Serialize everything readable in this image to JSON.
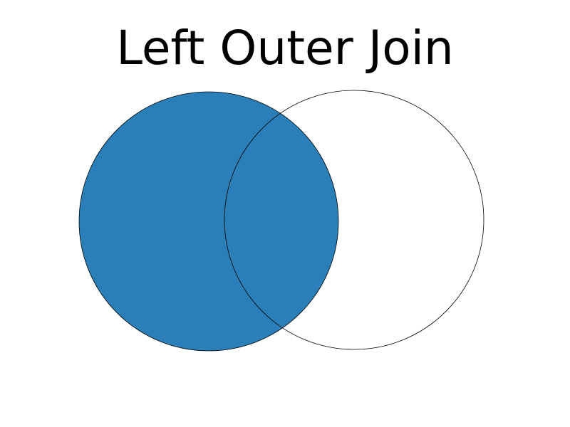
{
  "title": "Left Outer Join",
  "colors": {
    "fill": "#2a7fb8",
    "outline": "#000000",
    "background": "#ffffff"
  },
  "sets": [
    {
      "role": "left",
      "shaded": true
    },
    {
      "role": "right",
      "shaded": false
    }
  ]
}
